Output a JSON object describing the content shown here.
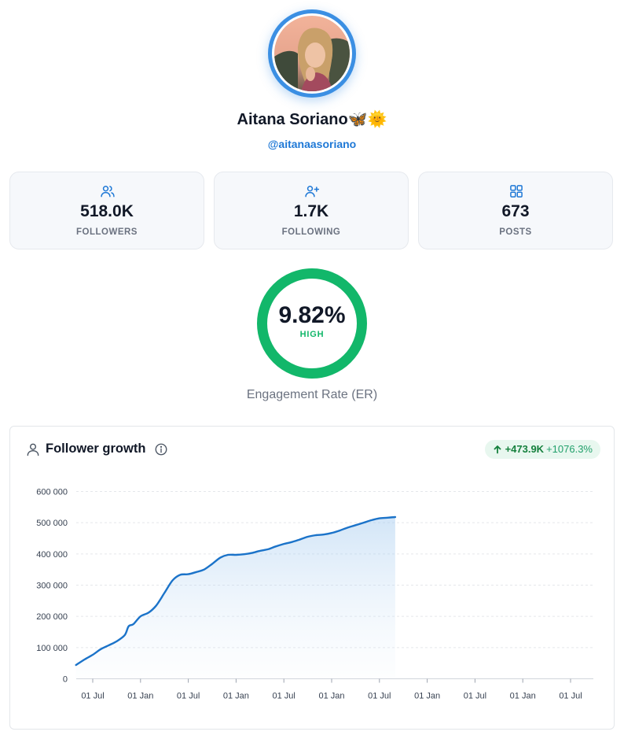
{
  "profile": {
    "name": "Aitana Soriano🦋🌞",
    "handle": "@aitanaasoriano"
  },
  "stats": [
    {
      "icon": "users-icon",
      "value": "518.0K",
      "label": "FOLLOWERS"
    },
    {
      "icon": "user-plus-icon",
      "value": "1.7K",
      "label": "FOLLOWING"
    },
    {
      "icon": "grid-icon",
      "value": "673",
      "label": "POSTS"
    }
  ],
  "engagement": {
    "value": "9.82%",
    "level": "HIGH",
    "caption": "Engagement Rate (ER)",
    "ring_color": "#12b76a"
  },
  "follower_growth": {
    "title": "Follower growth",
    "change_abs": "+473.9K",
    "change_pct": "+1076.3%"
  },
  "colors": {
    "accent": "#1e78d6",
    "line": "#1b73c9",
    "positive": "#15803d"
  },
  "chart_data": {
    "type": "area",
    "title": "Follower growth",
    "xlabel": "",
    "ylabel": "",
    "ylim": [
      0,
      600000
    ],
    "yticks": [
      "0",
      "100 000",
      "200 000",
      "300 000",
      "400 000",
      "500 000",
      "600 000"
    ],
    "xticks": [
      "01 Jul",
      "01 Jan",
      "01 Jul",
      "01 Jan",
      "01 Jul",
      "01 Jan",
      "01 Jul",
      "01 Jan",
      "01 Jul",
      "01 Jan",
      "01 Jul"
    ],
    "grid": true,
    "x_index": [
      -0.35,
      -0.17,
      0,
      0.17,
      0.33,
      0.5,
      0.67,
      0.75,
      0.85,
      1,
      1.17,
      1.33,
      1.5,
      1.67,
      1.83,
      2,
      2.17,
      2.33,
      2.5,
      2.67,
      2.83,
      3,
      3.17,
      3.33,
      3.5,
      3.67,
      3.83,
      4,
      4.17,
      4.33,
      4.5,
      4.67,
      4.83,
      5,
      5.17,
      5.33,
      5.5,
      5.67,
      5.83,
      6,
      6.17,
      6.33
    ],
    "series": [
      {
        "values": [
          44000,
          62000,
          77000,
          95000,
          107000,
          120000,
          140000,
          168000,
          175000,
          200000,
          212000,
          235000,
          275000,
          315000,
          333000,
          335000,
          342000,
          350000,
          368000,
          388000,
          397000,
          397000,
          399000,
          403000,
          410000,
          415000,
          424000,
          432000,
          438000,
          446000,
          455000,
          460000,
          462000,
          467000,
          475000,
          484000,
          492000,
          500000,
          508000,
          514000,
          516000,
          518000
        ]
      }
    ]
  }
}
